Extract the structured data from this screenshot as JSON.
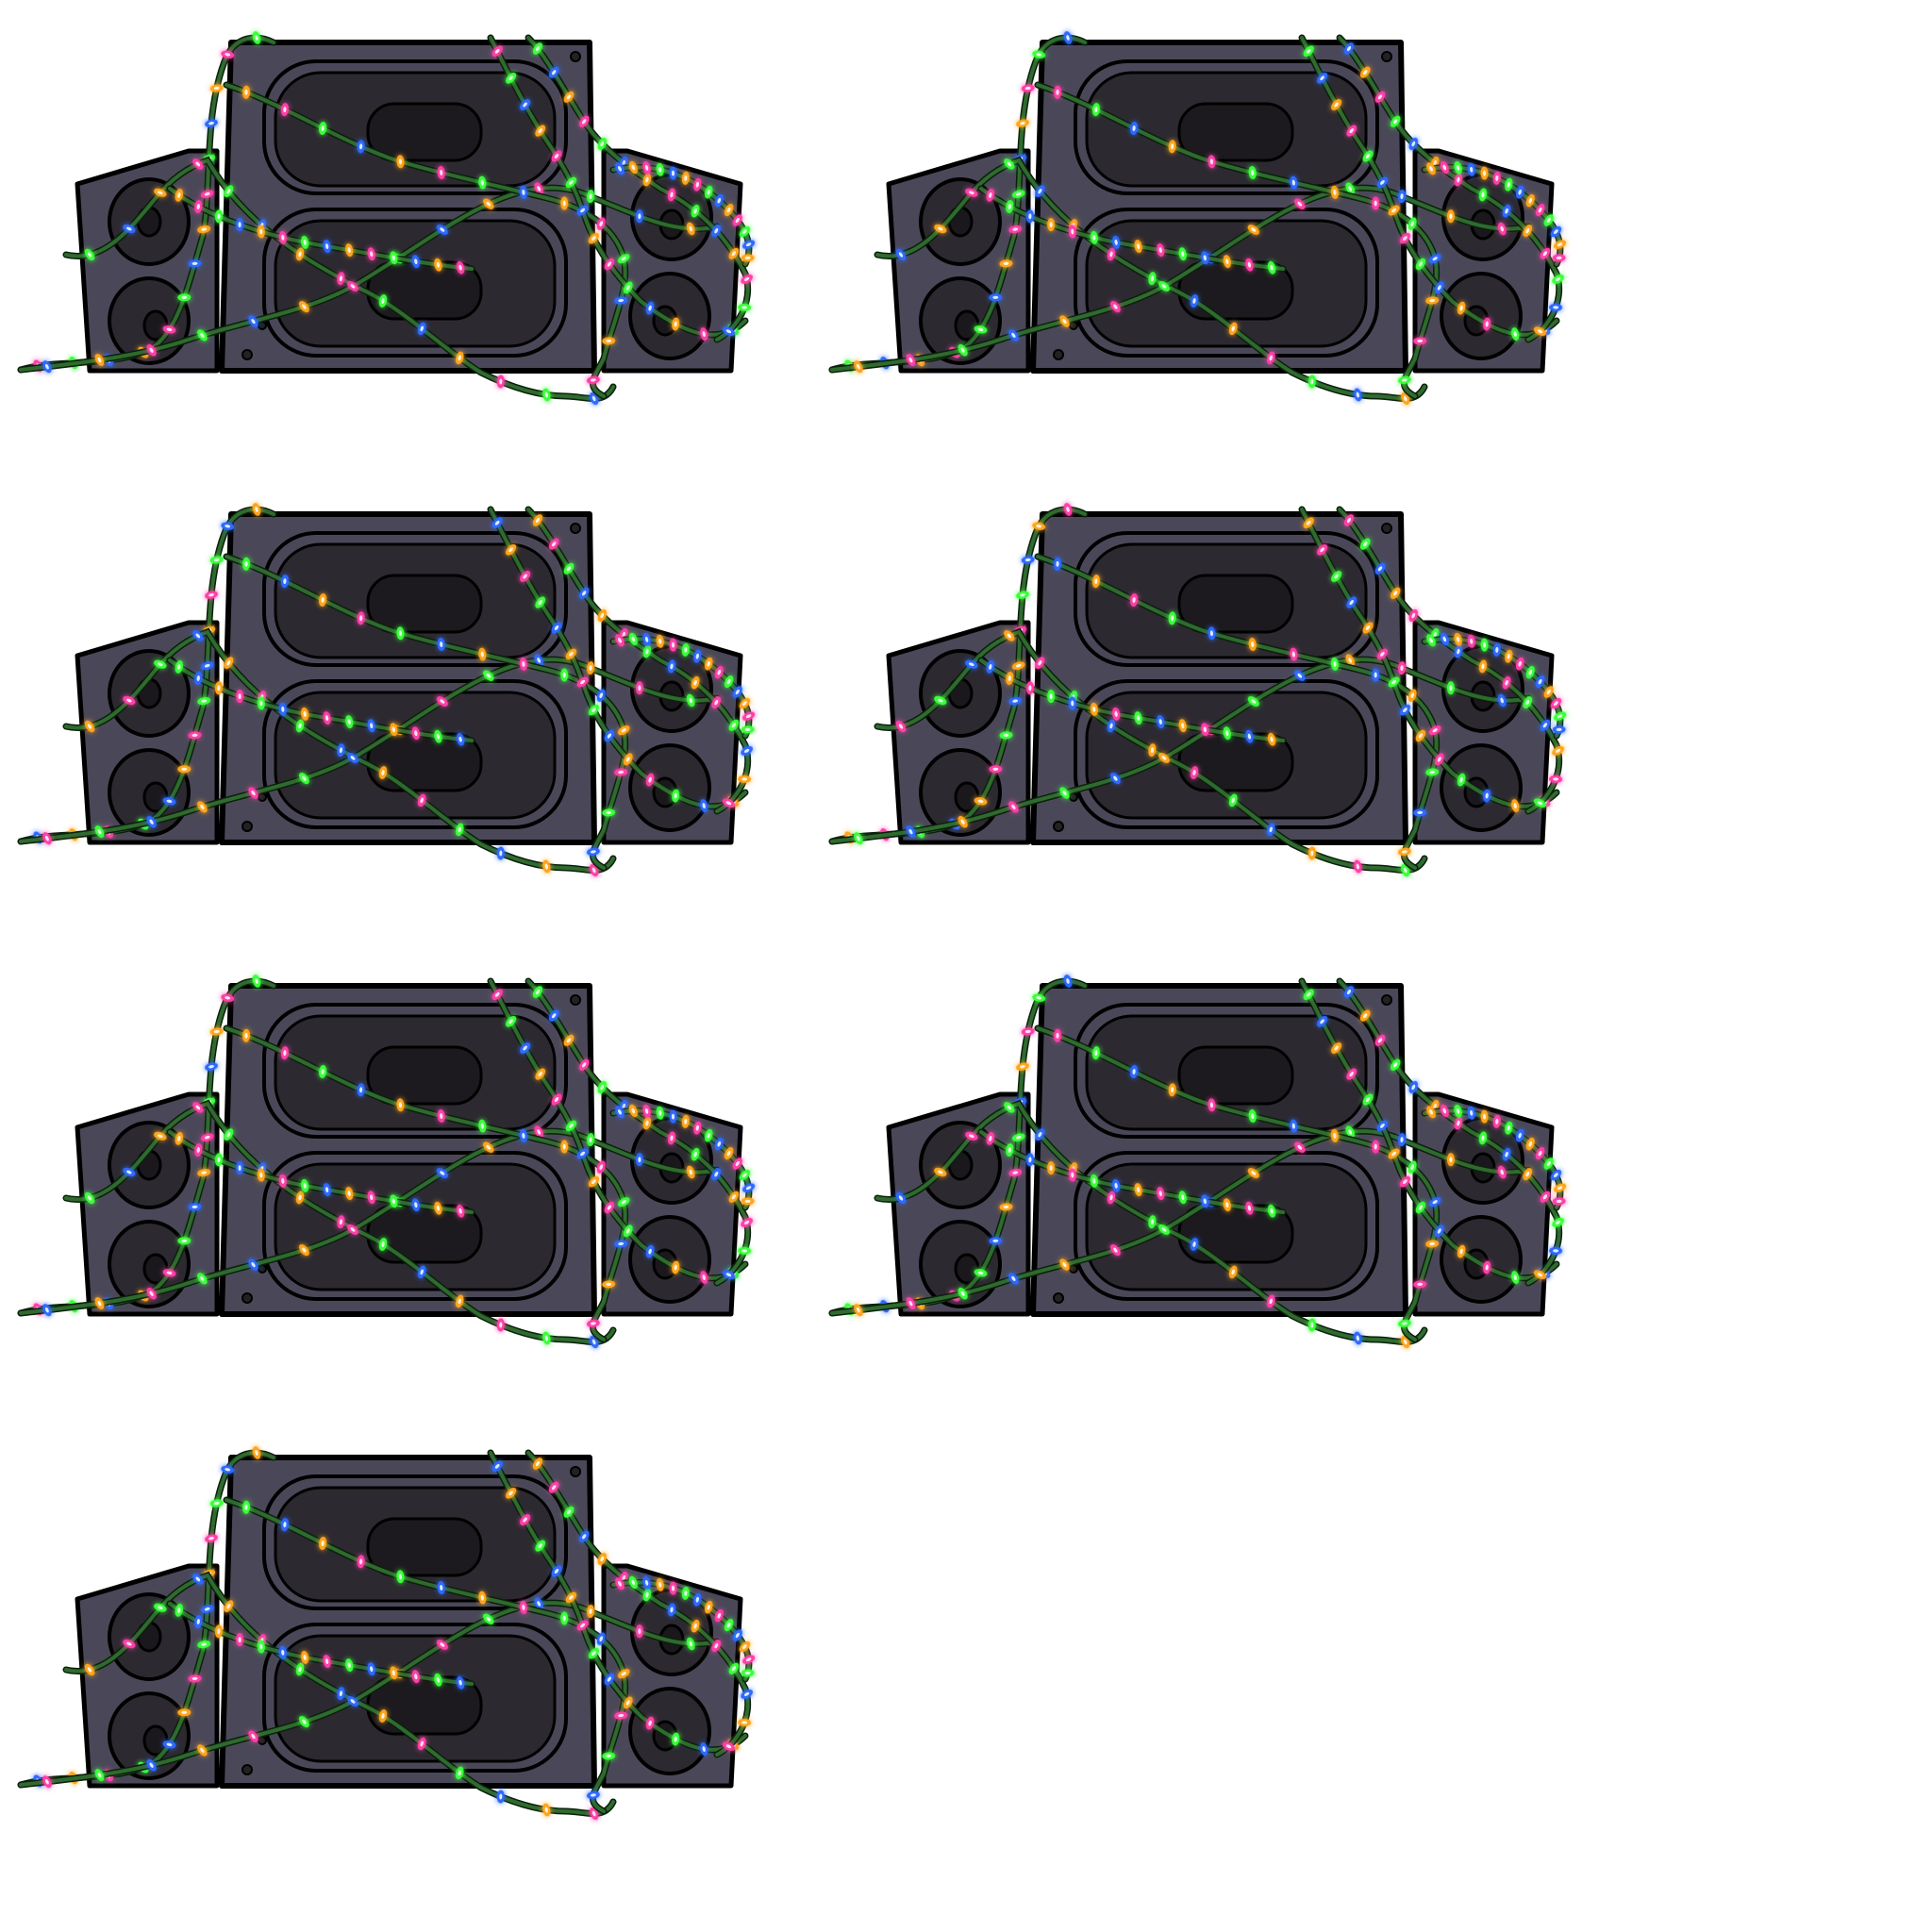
{
  "sprite_sheet": {
    "subject": "speaker-stack-with-christmas-lights",
    "frame_count": 7,
    "columns": 2,
    "background_color": "#ffffff",
    "speaker_color": "#4a4858",
    "cone_color": "#2c2930",
    "outline_color": "#000000",
    "wire_color": "#2f6a2f",
    "bulb_colors": [
      "#ff3fa8",
      "#3aff3a",
      "#2f6bff",
      "#ffa51f"
    ],
    "icons": {
      "center_speaker": "large-speaker-cabinet",
      "side_speakers": "small-speaker-cabinet",
      "lights": "string-light-bulb"
    }
  }
}
